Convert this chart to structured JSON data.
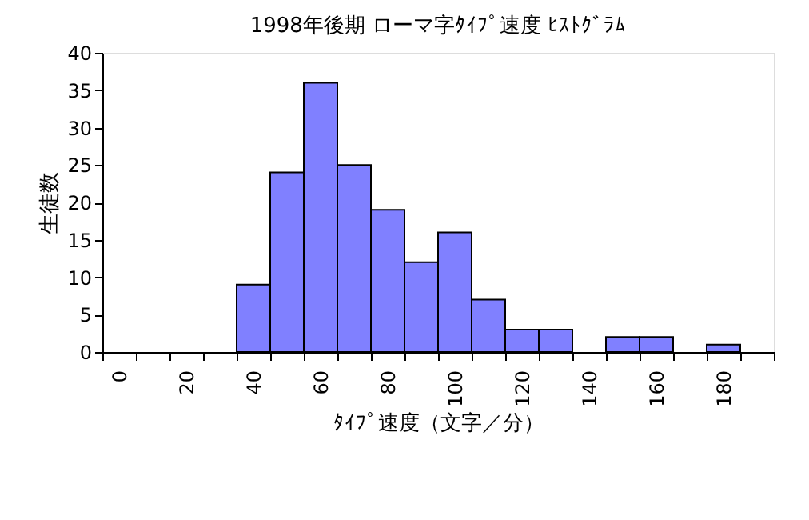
{
  "chart_data": {
    "type": "bar",
    "title": "1998年後期 ローマ字ﾀｲﾌﾟ速度 ﾋｽﾄｸﾞﾗﾑ",
    "xlabel": "ﾀｲﾌﾟ速度（文字／分）",
    "ylabel": "生徒数",
    "categories": [
      "0",
      null,
      "20",
      null,
      "40",
      null,
      "60",
      null,
      "80",
      null,
      "100",
      null,
      "120",
      null,
      "140",
      null,
      "160",
      null,
      "180",
      null
    ],
    "values": [
      0,
      0,
      0,
      0,
      9,
      24,
      36,
      25,
      19,
      12,
      16,
      7,
      3,
      3,
      0,
      2,
      2,
      0,
      1,
      0
    ],
    "color": "#8080ff",
    "ylim": [
      0,
      40
    ],
    "yticks": [
      0,
      5,
      10,
      15,
      20,
      25,
      30,
      35,
      40
    ],
    "grid": false
  }
}
